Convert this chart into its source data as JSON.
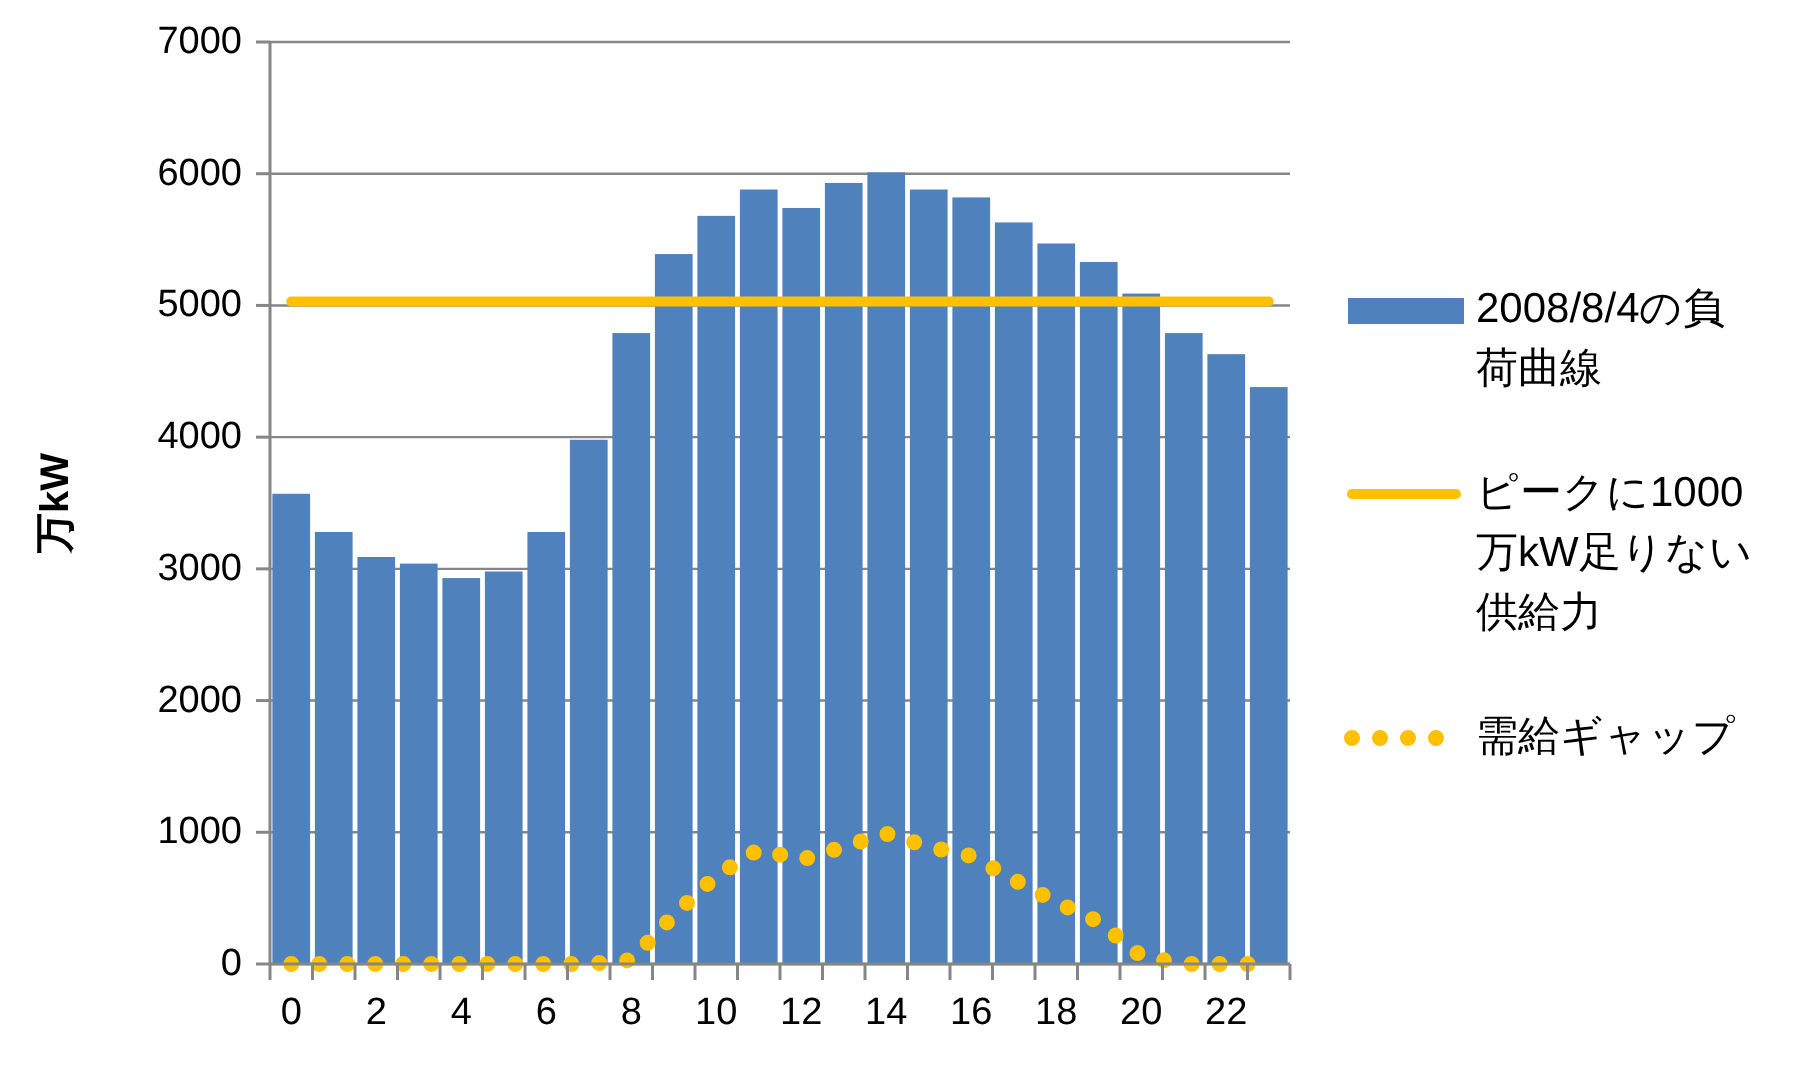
{
  "chart_data": {
    "type": "bar",
    "ylabel": "万kW",
    "categories": [
      "0",
      null,
      "2",
      null,
      "4",
      null,
      "6",
      null,
      "8",
      null,
      "10",
      null,
      "12",
      null,
      "14",
      null,
      "16",
      null,
      "18",
      null,
      "20",
      null,
      "22",
      null
    ],
    "series": [
      {
        "name": "2008/8/4の負荷曲線",
        "color": "#4f81bd",
        "values": [
          3570,
          3280,
          3090,
          3040,
          2930,
          2980,
          3280,
          3980,
          4790,
          5390,
          5680,
          5880,
          5740,
          5930,
          6010,
          5880,
          5820,
          5630,
          5470,
          5330,
          5090,
          4790,
          4630,
          4380
        ]
      },
      {
        "name": "ピークに1000万kW足りない供給力",
        "type": "line",
        "line_style": "solid",
        "color": "#ffc000",
        "values": [
          5030,
          5030,
          5030,
          5030,
          5030,
          5030,
          5030,
          5030,
          5030,
          5030,
          5030,
          5030,
          5030,
          5030,
          5030,
          5030,
          5030,
          5030,
          5030,
          5030,
          5030,
          5030,
          5030,
          5030
        ]
      },
      {
        "name": "需給ギャップ",
        "type": "line",
        "line_style": "dotted",
        "color": "#ffc000",
        "values": [
          0,
          0,
          0,
          0,
          0,
          0,
          0,
          0,
          30,
          370,
          670,
          870,
          790,
          890,
          990,
          890,
          820,
          640,
          470,
          320,
          60,
          0,
          0,
          0
        ]
      }
    ],
    "ylim": [
      0,
      7000
    ],
    "yticks": [
      0,
      1000,
      2000,
      3000,
      4000,
      5000,
      6000,
      7000
    ],
    "grid": "y",
    "legend": "right"
  }
}
